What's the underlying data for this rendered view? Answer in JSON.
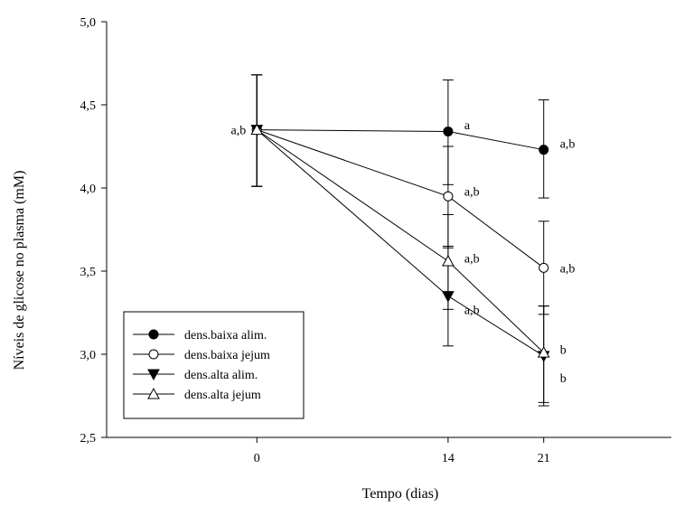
{
  "chart_data": {
    "type": "line",
    "title": "",
    "xlabel": "Tempo (dias)",
    "ylabel": "Níveis de glicose no plasma (mM)",
    "x": [
      0,
      14,
      21
    ],
    "x_tick_labels": [
      "0",
      "14",
      "21"
    ],
    "xlim": [
      -11,
      32
    ],
    "ylim": [
      2.5,
      5.0
    ],
    "y_ticks": [
      2.5,
      3.0,
      3.5,
      4.0,
      4.5,
      5.0
    ],
    "y_tick_labels": [
      "2,5",
      "3,0",
      "3,5",
      "4,0",
      "4,5",
      "5,0"
    ],
    "grid": false,
    "legend_position": "bottom-left",
    "series": [
      {
        "name": "dens.baixa alim.",
        "marker": "filled-circle",
        "values": [
          4.35,
          4.34,
          4.23
        ],
        "err_low": [
          4.01,
          4.02,
          3.94
        ],
        "err_high": [
          4.68,
          4.65,
          4.53
        ]
      },
      {
        "name": "dens.baixa jejum",
        "marker": "open-circle",
        "values": [
          4.35,
          3.95,
          3.52
        ],
        "err_low": [
          4.01,
          3.64,
          3.24
        ],
        "err_high": [
          4.68,
          4.25,
          3.8
        ]
      },
      {
        "name": "dens.alta alim.",
        "marker": "filled-triangle-down",
        "values": [
          4.35,
          3.35,
          2.99
        ],
        "err_low": [
          4.01,
          3.05,
          2.69
        ],
        "err_high": [
          4.68,
          3.65,
          3.29
        ]
      },
      {
        "name": "dens.alta jejum",
        "marker": "open-triangle-up",
        "values": [
          4.35,
          3.56,
          3.01
        ],
        "err_low": [
          4.01,
          3.27,
          2.71
        ],
        "err_high": [
          4.68,
          3.84,
          3.29
        ]
      }
    ],
    "annotations": [
      {
        "text": "a,b",
        "x": 0,
        "y": 4.35,
        "side": "left"
      },
      {
        "text": "a",
        "x": 14,
        "y": 4.38,
        "side": "right"
      },
      {
        "text": "a,b",
        "x": 14,
        "y": 3.98,
        "side": "right"
      },
      {
        "text": "a,b",
        "x": 14,
        "y": 3.58,
        "side": "right"
      },
      {
        "text": "a,b",
        "x": 14,
        "y": 3.27,
        "side": "right"
      },
      {
        "text": "a,b",
        "x": 21,
        "y": 4.27,
        "side": "right"
      },
      {
        "text": "a,b",
        "x": 21,
        "y": 3.52,
        "side": "right"
      },
      {
        "text": "b",
        "x": 21,
        "y": 3.03,
        "side": "right"
      },
      {
        "text": "b",
        "x": 21,
        "y": 2.86,
        "side": "right"
      }
    ]
  }
}
